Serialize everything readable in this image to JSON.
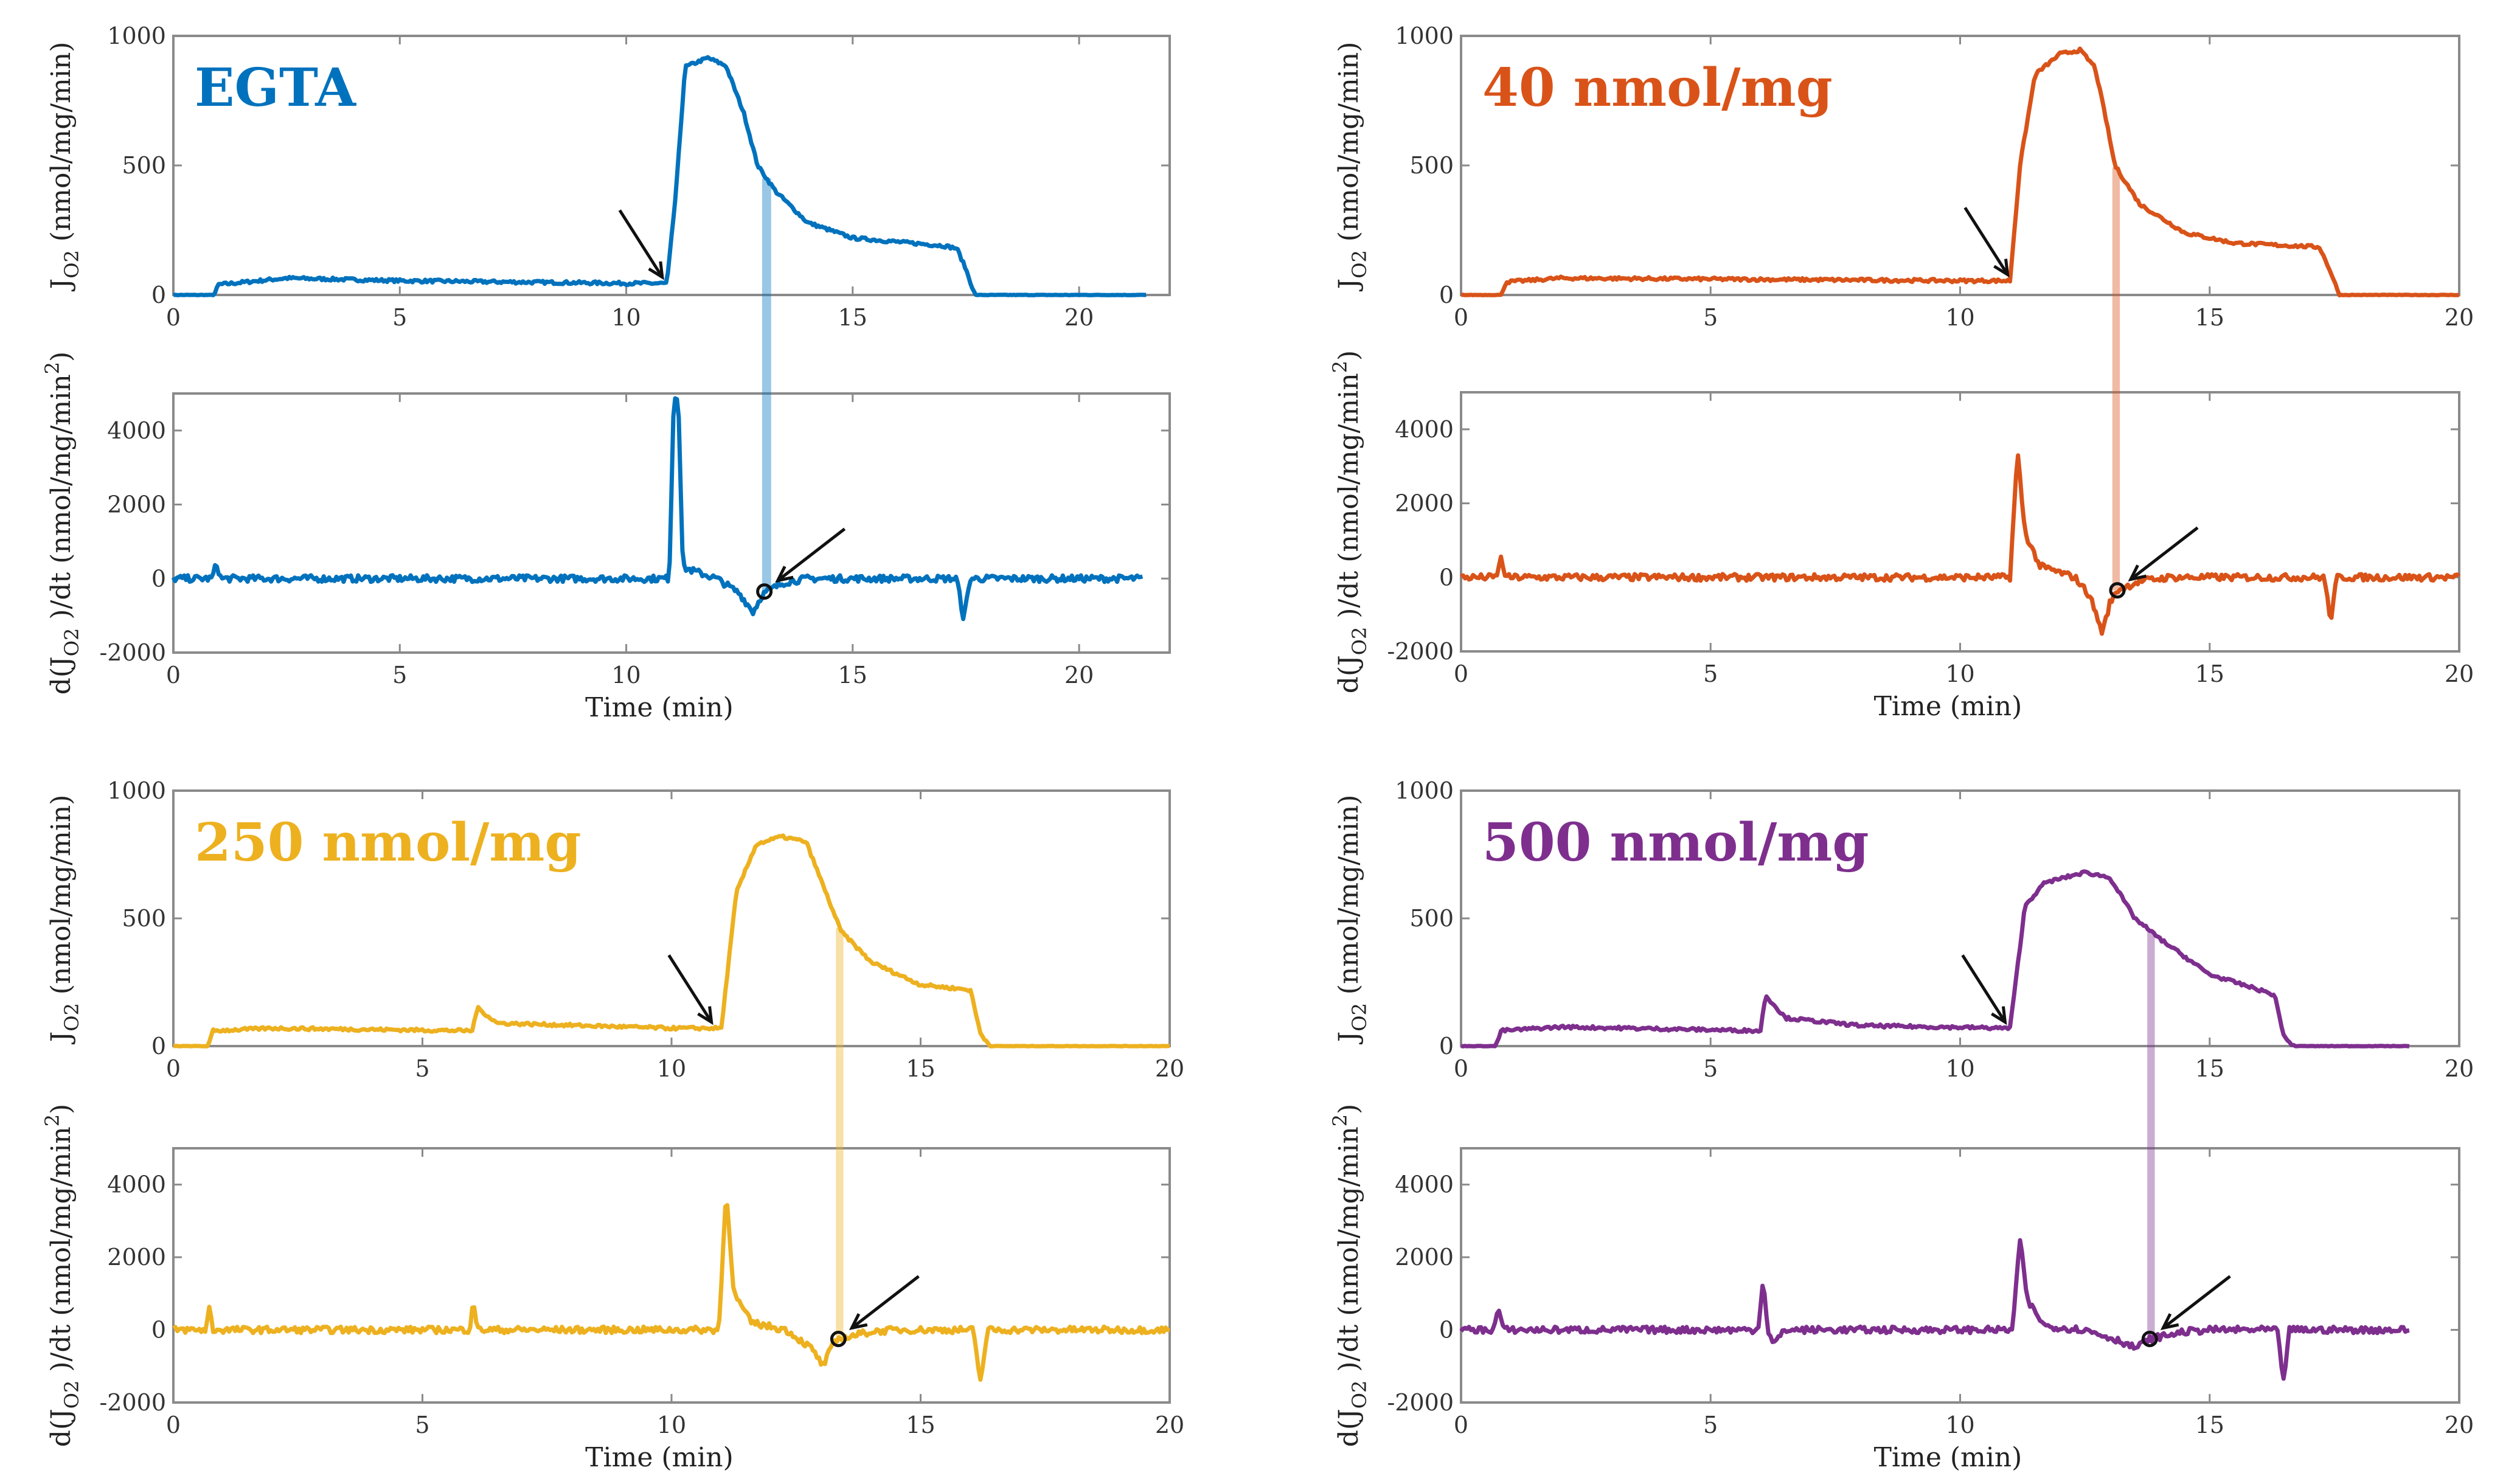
{
  "chart_data": [
    {
      "type": "line",
      "title": "EGTA",
      "color": "#0072BD",
      "xlabel": "Time (min)",
      "xlim": [
        0,
        22
      ],
      "xticks": [
        0,
        5,
        10,
        15,
        20
      ],
      "top": {
        "ylabel": "J_O2 (nmol/mg/min)",
        "ylim": [
          0,
          1000
        ],
        "yticks": [
          0,
          500,
          1000
        ],
        "points": [
          [
            0,
            0
          ],
          [
            0.9,
            0
          ],
          [
            1.0,
            40
          ],
          [
            2.5,
            65
          ],
          [
            5,
            55
          ],
          [
            10,
            45
          ],
          [
            10.9,
            45
          ],
          [
            11.1,
            400
          ],
          [
            11.3,
            880
          ],
          [
            11.8,
            915
          ],
          [
            12.2,
            885
          ],
          [
            12.6,
            700
          ],
          [
            12.9,
            500
          ],
          [
            13.3,
            400
          ],
          [
            14,
            280
          ],
          [
            15,
            220
          ],
          [
            17,
            190
          ],
          [
            17.3,
            180
          ],
          [
            17.5,
            100
          ],
          [
            17.7,
            0
          ],
          [
            21.5,
            0
          ]
        ],
        "arrow_tip": [
          10.85,
          50
        ]
      },
      "bottom": {
        "ylabel": "d(J_O2)/dt (nmol/mg/min^2)",
        "ylim": [
          -2000,
          5000
        ],
        "yticks": [
          -2000,
          0,
          2000,
          4000
        ],
        "points": [
          [
            0,
            0
          ],
          [
            0.85,
            0
          ],
          [
            0.95,
            400
          ],
          [
            1.05,
            0
          ],
          [
            10.95,
            0
          ],
          [
            11.05,
            4900
          ],
          [
            11.15,
            4900
          ],
          [
            11.25,
            300
          ],
          [
            12,
            0
          ],
          [
            12.5,
            -400
          ],
          [
            12.8,
            -900
          ],
          [
            13.0,
            -450
          ],
          [
            13.1,
            -350
          ],
          [
            13.5,
            -100
          ],
          [
            14,
            0
          ],
          [
            17.3,
            0
          ],
          [
            17.45,
            -1100
          ],
          [
            17.6,
            0
          ],
          [
            21.4,
            0
          ]
        ],
        "marker": [
          13.05,
          -350
        ]
      },
      "band_time": [
        13.0,
        13.2
      ]
    },
    {
      "type": "line",
      "title": "40 nmol/mg",
      "color": "#D95319",
      "xlabel": "Time (min)",
      "xlim": [
        0,
        20
      ],
      "xticks": [
        0,
        5,
        10,
        15,
        20
      ],
      "top": {
        "ylabel": "J_O2 (nmol/mg/min)",
        "ylim": [
          0,
          1000
        ],
        "yticks": [
          0,
          500,
          1000
        ],
        "points": [
          [
            0,
            0
          ],
          [
            0.8,
            0
          ],
          [
            0.9,
            50
          ],
          [
            2,
            65
          ],
          [
            10,
            55
          ],
          [
            11,
            55
          ],
          [
            11.2,
            500
          ],
          [
            11.5,
            850
          ],
          [
            12,
            930
          ],
          [
            12.4,
            945
          ],
          [
            12.7,
            880
          ],
          [
            12.9,
            700
          ],
          [
            13.1,
            500
          ],
          [
            13.6,
            350
          ],
          [
            14.5,
            240
          ],
          [
            15.5,
            200
          ],
          [
            17.2,
            185
          ],
          [
            17.4,
            100
          ],
          [
            17.6,
            0
          ],
          [
            20,
            0
          ]
        ],
        "arrow_tip": [
          11.0,
          60
        ]
      },
      "bottom": {
        "ylabel": "d(J_O2)/dt (nmol/mg/min^2)",
        "ylim": [
          -2000,
          5000
        ],
        "yticks": [
          -2000,
          0,
          2000,
          4000
        ],
        "points": [
          [
            0,
            0
          ],
          [
            0.7,
            0
          ],
          [
            0.8,
            500
          ],
          [
            0.9,
            0
          ],
          [
            11.0,
            0
          ],
          [
            11.15,
            3400
          ],
          [
            11.3,
            1200
          ],
          [
            11.6,
            300
          ],
          [
            12.3,
            0
          ],
          [
            12.6,
            -500
          ],
          [
            12.85,
            -1500
          ],
          [
            13.0,
            -700
          ],
          [
            13.15,
            -350
          ],
          [
            13.6,
            -100
          ],
          [
            14.2,
            0
          ],
          [
            17.3,
            0
          ],
          [
            17.42,
            -1200
          ],
          [
            17.55,
            0
          ],
          [
            20,
            0
          ]
        ],
        "marker": [
          13.15,
          -350
        ]
      },
      "band_time": [
        13.05,
        13.2
      ]
    },
    {
      "type": "line",
      "title": "250 nmol/mg",
      "color": "#EDB120",
      "xlabel": "Time (min)",
      "xlim": [
        0,
        20
      ],
      "xticks": [
        0,
        5,
        10,
        15,
        20
      ],
      "top": {
        "ylabel": "J_O2 (nmol/mg/min)",
        "ylim": [
          0,
          1000
        ],
        "yticks": [
          0,
          500,
          1000
        ],
        "points": [
          [
            0,
            0
          ],
          [
            0.7,
            0
          ],
          [
            0.8,
            60
          ],
          [
            2,
            70
          ],
          [
            6,
            60
          ],
          [
            6.1,
            150
          ],
          [
            6.5,
            90
          ],
          [
            10,
            70
          ],
          [
            11,
            70
          ],
          [
            11.3,
            600
          ],
          [
            11.7,
            790
          ],
          [
            12.2,
            820
          ],
          [
            12.7,
            800
          ],
          [
            13.0,
            650
          ],
          [
            13.4,
            450
          ],
          [
            14,
            330
          ],
          [
            15,
            240
          ],
          [
            16,
            220
          ],
          [
            16.2,
            50
          ],
          [
            16.4,
            0
          ],
          [
            20,
            0
          ]
        ],
        "arrow_tip": [
          10.85,
          75
        ]
      },
      "bottom": {
        "ylabel": "d(J_O2)/dt (nmol/mg/min^2)",
        "ylim": [
          -2000,
          5000
        ],
        "yticks": [
          -2000,
          0,
          2000,
          4000
        ],
        "points": [
          [
            0,
            0
          ],
          [
            0.65,
            0
          ],
          [
            0.72,
            600
          ],
          [
            0.8,
            0
          ],
          [
            5.95,
            0
          ],
          [
            6.02,
            900
          ],
          [
            6.1,
            0
          ],
          [
            10.95,
            0
          ],
          [
            11.1,
            3900
          ],
          [
            11.25,
            1000
          ],
          [
            11.6,
            200
          ],
          [
            12.3,
            0
          ],
          [
            12.8,
            -500
          ],
          [
            13.05,
            -1000
          ],
          [
            13.2,
            -500
          ],
          [
            13.35,
            -250
          ],
          [
            14,
            -50
          ],
          [
            14.5,
            0
          ],
          [
            16.05,
            0
          ],
          [
            16.2,
            -1400
          ],
          [
            16.35,
            0
          ],
          [
            20,
            0
          ]
        ],
        "marker": [
          13.35,
          -250
        ]
      },
      "band_time": [
        13.3,
        13.45
      ]
    },
    {
      "type": "line",
      "title": "500 nmol/mg",
      "color": "#7E2F8E",
      "xlabel": "Time (min)",
      "xlim": [
        0,
        20
      ],
      "xticks": [
        0,
        5,
        10,
        15,
        20
      ],
      "top": {
        "ylabel": "J_O2 (nmol/mg/min)",
        "ylim": [
          0,
          1000
        ],
        "yticks": [
          0,
          500,
          1000
        ],
        "points": [
          [
            0,
            0
          ],
          [
            0.7,
            0
          ],
          [
            0.8,
            60
          ],
          [
            2,
            75
          ],
          [
            6,
            60
          ],
          [
            6.1,
            200
          ],
          [
            6.5,
            110
          ],
          [
            8,
            80
          ],
          [
            11,
            70
          ],
          [
            11.3,
            550
          ],
          [
            11.7,
            640
          ],
          [
            12.5,
            680
          ],
          [
            13,
            660
          ],
          [
            13.5,
            500
          ],
          [
            14,
            420
          ],
          [
            15,
            280
          ],
          [
            16,
            220
          ],
          [
            16.3,
            200
          ],
          [
            16.5,
            30
          ],
          [
            16.7,
            0
          ],
          [
            19,
            0
          ]
        ],
        "arrow_tip": [
          10.95,
          75
        ]
      },
      "bottom": {
        "ylabel": "d(J_O2)/dt (nmol/mg/min^2)",
        "ylim": [
          -2000,
          5000
        ],
        "yticks": [
          -2000,
          0,
          2000,
          4000
        ],
        "points": [
          [
            0,
            0
          ],
          [
            0.65,
            0
          ],
          [
            0.75,
            600
          ],
          [
            0.85,
            0
          ],
          [
            5.95,
            0
          ],
          [
            6.05,
            1400
          ],
          [
            6.15,
            0
          ],
          [
            6.25,
            -400
          ],
          [
            6.5,
            0
          ],
          [
            11.05,
            0
          ],
          [
            11.2,
            2500
          ],
          [
            11.35,
            800
          ],
          [
            11.7,
            100
          ],
          [
            12.5,
            0
          ],
          [
            13.2,
            -300
          ],
          [
            13.5,
            -500
          ],
          [
            13.8,
            -250
          ],
          [
            14.5,
            -50
          ],
          [
            15,
            0
          ],
          [
            16.35,
            0
          ],
          [
            16.48,
            -1400
          ],
          [
            16.6,
            0
          ],
          [
            19,
            0
          ]
        ],
        "marker": [
          13.8,
          -250
        ]
      },
      "band_time": [
        13.75,
        13.9
      ]
    }
  ]
}
